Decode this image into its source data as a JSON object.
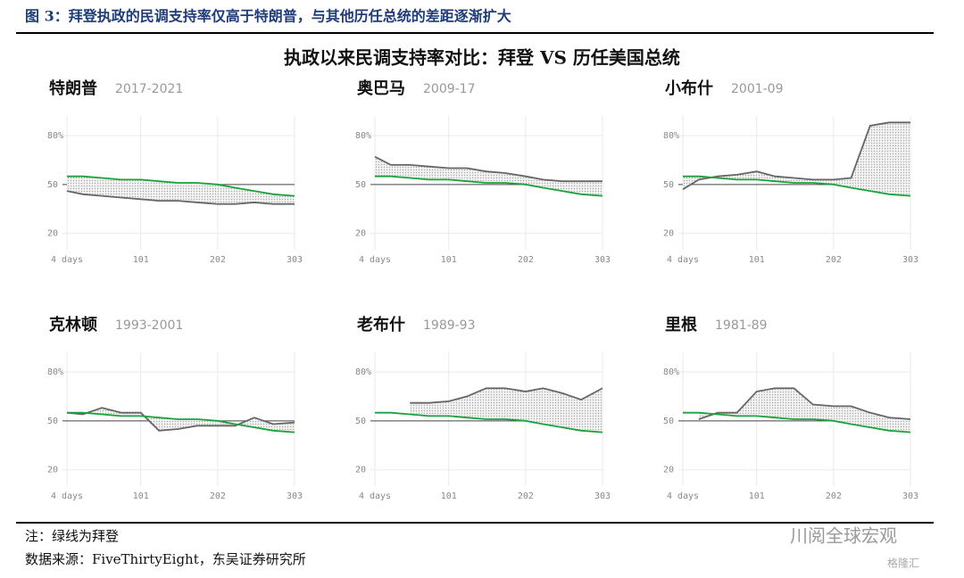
{
  "header": {
    "figure_title": "图 3：拜登执政的民调支持率仅高于特朗普，与其他历任总统的差距逐渐扩大",
    "title": "执政以来民调支持率对比：拜登 VS 历任美国总统"
  },
  "footer": {
    "note": "注：绿线为拜登",
    "source": "数据来源：FiveThirtyEight，东吴证券研究所",
    "watermark": "川阅全球宏观",
    "logo": "格隆汇"
  },
  "chart_data": [
    {
      "type": "line",
      "title": "特朗普",
      "subtitle": "2017-2021",
      "x": [
        4,
        25,
        50,
        75,
        101,
        125,
        150,
        175,
        202,
        225,
        250,
        275,
        303
      ],
      "series": [
        {
          "color": "#666666",
          "values": [
            46,
            44,
            43,
            42,
            41,
            40,
            40,
            39,
            38,
            38,
            39,
            38,
            38
          ]
        },
        {
          "color": "#1aa33a",
          "values": [
            55,
            55,
            54,
            53,
            53,
            52,
            51,
            51,
            50,
            48,
            46,
            44,
            43
          ]
        }
      ],
      "xlim": [
        4,
        303
      ],
      "ylim": [
        10,
        92
      ],
      "xticks": [
        {
          "value": 4,
          "label": "4 days"
        },
        101,
        202,
        303
      ],
      "yticks": [
        20,
        50,
        {
          "value": 80,
          "label": "80%"
        }
      ],
      "reference_line": 50,
      "grid": true
    },
    {
      "type": "line",
      "title": "奥巴马",
      "subtitle": "2009-17",
      "x": [
        4,
        25,
        50,
        75,
        101,
        125,
        150,
        175,
        202,
        225,
        250,
        275,
        303
      ],
      "series": [
        {
          "color": "#666666",
          "values": [
            67,
            62,
            62,
            61,
            60,
            60,
            58,
            57,
            55,
            53,
            52,
            52,
            52
          ]
        },
        {
          "color": "#1aa33a",
          "values": [
            55,
            55,
            54,
            53,
            53,
            52,
            51,
            51,
            50,
            48,
            46,
            44,
            43
          ]
        }
      ],
      "xlim": [
        4,
        303
      ],
      "ylim": [
        10,
        92
      ],
      "xticks": [
        {
          "value": 4,
          "label": "4 days"
        },
        101,
        202,
        303
      ],
      "yticks": [
        20,
        50,
        {
          "value": 80,
          "label": "80%"
        }
      ],
      "reference_line": 50,
      "grid": true
    },
    {
      "type": "line",
      "title": "小布什",
      "subtitle": "2001-09",
      "x": [
        4,
        25,
        50,
        75,
        101,
        125,
        150,
        175,
        202,
        225,
        250,
        275,
        303
      ],
      "series": [
        {
          "color": "#666666",
          "values": [
            47,
            53,
            55,
            56,
            58,
            55,
            54,
            53,
            53,
            54,
            86,
            88,
            88
          ]
        },
        {
          "color": "#1aa33a",
          "values": [
            55,
            55,
            54,
            53,
            53,
            52,
            51,
            51,
            50,
            48,
            46,
            44,
            43
          ]
        }
      ],
      "xlim": [
        4,
        303
      ],
      "ylim": [
        10,
        92
      ],
      "xticks": [
        {
          "value": 4,
          "label": "4 days"
        },
        101,
        202,
        303
      ],
      "yticks": [
        20,
        50,
        {
          "value": 80,
          "label": "80%"
        }
      ],
      "reference_line": 50,
      "grid": true
    },
    {
      "type": "line",
      "title": "克林顿",
      "subtitle": "1993-2001",
      "x": [
        4,
        25,
        50,
        75,
        101,
        125,
        150,
        175,
        202,
        225,
        250,
        275,
        303
      ],
      "series": [
        {
          "color": "#666666",
          "values": [
            55,
            54,
            58,
            55,
            55,
            44,
            45,
            47,
            47,
            47,
            52,
            48,
            49
          ]
        },
        {
          "color": "#1aa33a",
          "values": [
            55,
            55,
            54,
            53,
            53,
            52,
            51,
            51,
            50,
            48,
            46,
            44,
            43
          ]
        }
      ],
      "xlim": [
        4,
        303
      ],
      "ylim": [
        10,
        92
      ],
      "xticks": [
        {
          "value": 4,
          "label": "4 days"
        },
        101,
        202,
        303
      ],
      "yticks": [
        20,
        50,
        {
          "value": 80,
          "label": "80%"
        }
      ],
      "reference_line": 50,
      "grid": true
    },
    {
      "type": "line",
      "title": "老布什",
      "subtitle": "1989-93",
      "x": [
        4,
        25,
        50,
        75,
        101,
        125,
        150,
        175,
        202,
        225,
        250,
        275,
        303
      ],
      "series": [
        {
          "color": "#666666",
          "values": [
            null,
            null,
            61,
            61,
            62,
            65,
            70,
            70,
            68,
            70,
            67,
            63,
            70
          ]
        },
        {
          "color": "#1aa33a",
          "values": [
            55,
            55,
            54,
            53,
            53,
            52,
            51,
            51,
            50,
            48,
            46,
            44,
            43
          ]
        }
      ],
      "xlim": [
        4,
        303
      ],
      "ylim": [
        10,
        92
      ],
      "xticks": [
        {
          "value": 4,
          "label": "4 days"
        },
        101,
        202,
        303
      ],
      "yticks": [
        20,
        50,
        {
          "value": 80,
          "label": "80%"
        }
      ],
      "reference_line": 50,
      "grid": true
    },
    {
      "type": "line",
      "title": "里根",
      "subtitle": "1981-89",
      "x": [
        4,
        25,
        50,
        75,
        101,
        125,
        150,
        175,
        202,
        225,
        250,
        275,
        303
      ],
      "series": [
        {
          "color": "#666666",
          "values": [
            null,
            51,
            55,
            55,
            68,
            70,
            70,
            60,
            59,
            59,
            55,
            52,
            51
          ]
        },
        {
          "color": "#1aa33a",
          "values": [
            55,
            55,
            54,
            53,
            53,
            52,
            51,
            51,
            50,
            48,
            46,
            44,
            43
          ]
        }
      ],
      "xlim": [
        4,
        303
      ],
      "ylim": [
        10,
        92
      ],
      "xticks": [
        {
          "value": 4,
          "label": "4 days"
        },
        101,
        202,
        303
      ],
      "yticks": [
        20,
        50,
        {
          "value": 80,
          "label": "80%"
        }
      ],
      "reference_line": 50,
      "grid": true
    }
  ]
}
